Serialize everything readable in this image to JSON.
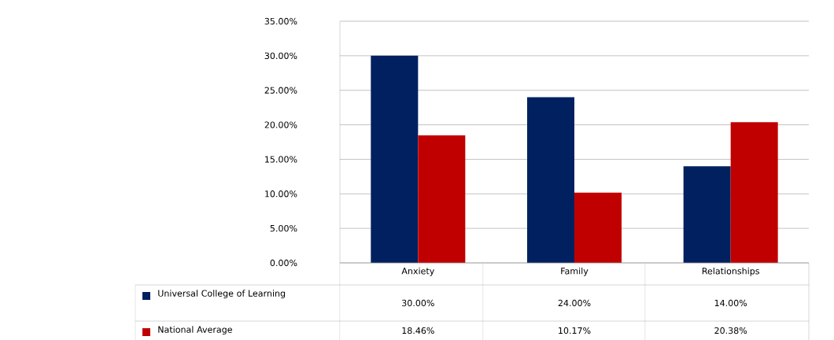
{
  "chart_data": {
    "type": "bar",
    "categories": [
      "Anxiety",
      "Family",
      "Relationships"
    ],
    "series": [
      {
        "name": "Universal College of Learning",
        "color": "#002060",
        "values": [
          30,
          24,
          14
        ],
        "value_labels": [
          "30.00%",
          "24.00%",
          "14.00%"
        ]
      },
      {
        "name": "National Average",
        "color": "#c00000",
        "values": [
          18.46,
          10.17,
          20.38
        ],
        "value_labels": [
          "18.46%",
          "10.17%",
          "20.38%"
        ]
      }
    ],
    "ylim": [
      0,
      35
    ],
    "yticks": [
      {
        "value": 0,
        "label": "0.00%"
      },
      {
        "value": 5,
        "label": "5.00%"
      },
      {
        "value": 10,
        "label": "10.00%"
      },
      {
        "value": 15,
        "label": "15.00%"
      },
      {
        "value": 20,
        "label": "20.00%"
      },
      {
        "value": 25,
        "label": "25.00%"
      },
      {
        "value": 30,
        "label": "30.00%"
      },
      {
        "value": 35,
        "label": "35.00%"
      }
    ],
    "grid": "y",
    "legend": "bottom"
  }
}
